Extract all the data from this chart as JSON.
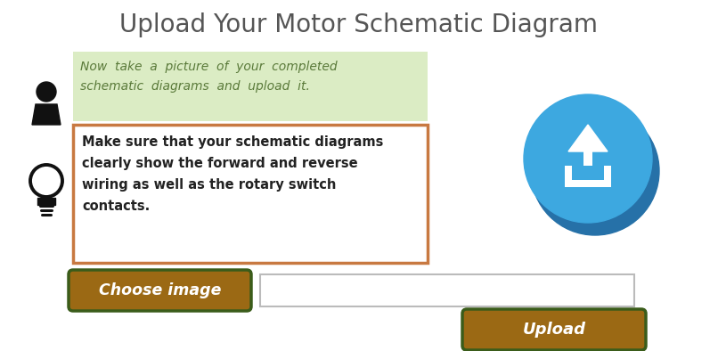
{
  "title": "Upload Your Motor Schematic Diagram",
  "title_fontsize": 20,
  "title_color": "#555555",
  "bg_color": "#ffffff",
  "green_box_text": "Now  take  a  picture  of  your  completed\nschematic  diagrams  and  upload  it.",
  "green_box_bg": "#dbecc4",
  "green_text_color": "#5a7a3a",
  "orange_box_text": "Make sure that your schematic diagrams\nclearly show the forward and reverse\nwiring as well as the rotary switch\ncontacts.",
  "orange_box_border": "#c87941",
  "orange_text_color": "#222222",
  "choose_btn_text": "Choose image",
  "choose_btn_bg": "#9b6914",
  "choose_btn_border": "#3a5c1a",
  "upload_btn_text": "Upload",
  "upload_btn_bg": "#9b6914",
  "upload_btn_border": "#3a5c1a",
  "btn_text_color": "#ffffff",
  "circle_color": "#3da8e0",
  "circle_shadow": "#2671a8",
  "person_icon_color": "#111111",
  "bulb_icon_color": "#111111"
}
